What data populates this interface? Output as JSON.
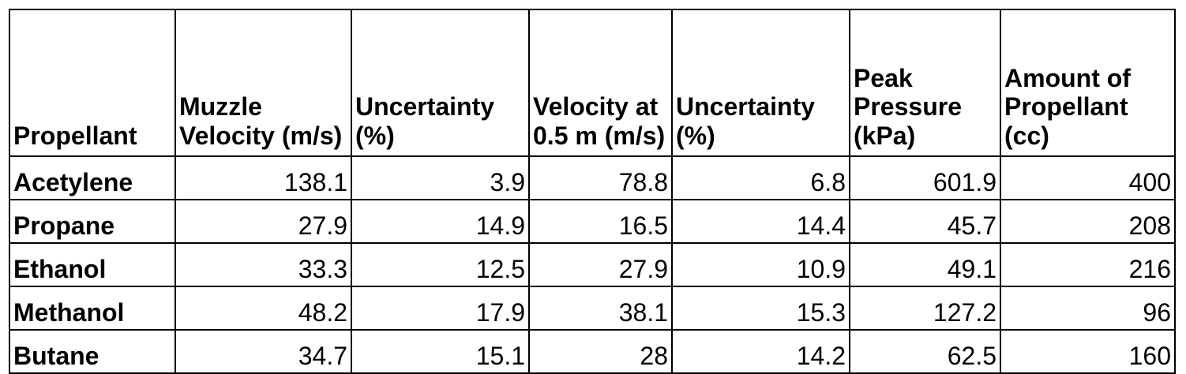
{
  "table": {
    "headers": [
      "Propellant",
      "Muzzle Velocity (m/s)",
      "Uncertainty (%)",
      "Velocity at 0.5 m (m/s)",
      "Uncertainty (%)",
      "Peak Pressure (kPa)",
      "Amount of Propellant (cc)"
    ],
    "rows": [
      [
        "Acetylene",
        "138.1",
        "3.9",
        "78.8",
        "6.8",
        "601.9",
        "400"
      ],
      [
        "Propane",
        "27.9",
        "14.9",
        "16.5",
        "14.4",
        "45.7",
        "208"
      ],
      [
        "Ethanol",
        "33.3",
        "12.5",
        "27.9",
        "10.9",
        "49.1",
        "216"
      ],
      [
        "Methanol",
        "48.2",
        "17.9",
        "38.1",
        "15.3",
        "127.2",
        "96"
      ],
      [
        "Butane",
        "34.7",
        "15.1",
        "28",
        "14.2",
        "62.5",
        "160"
      ]
    ]
  }
}
